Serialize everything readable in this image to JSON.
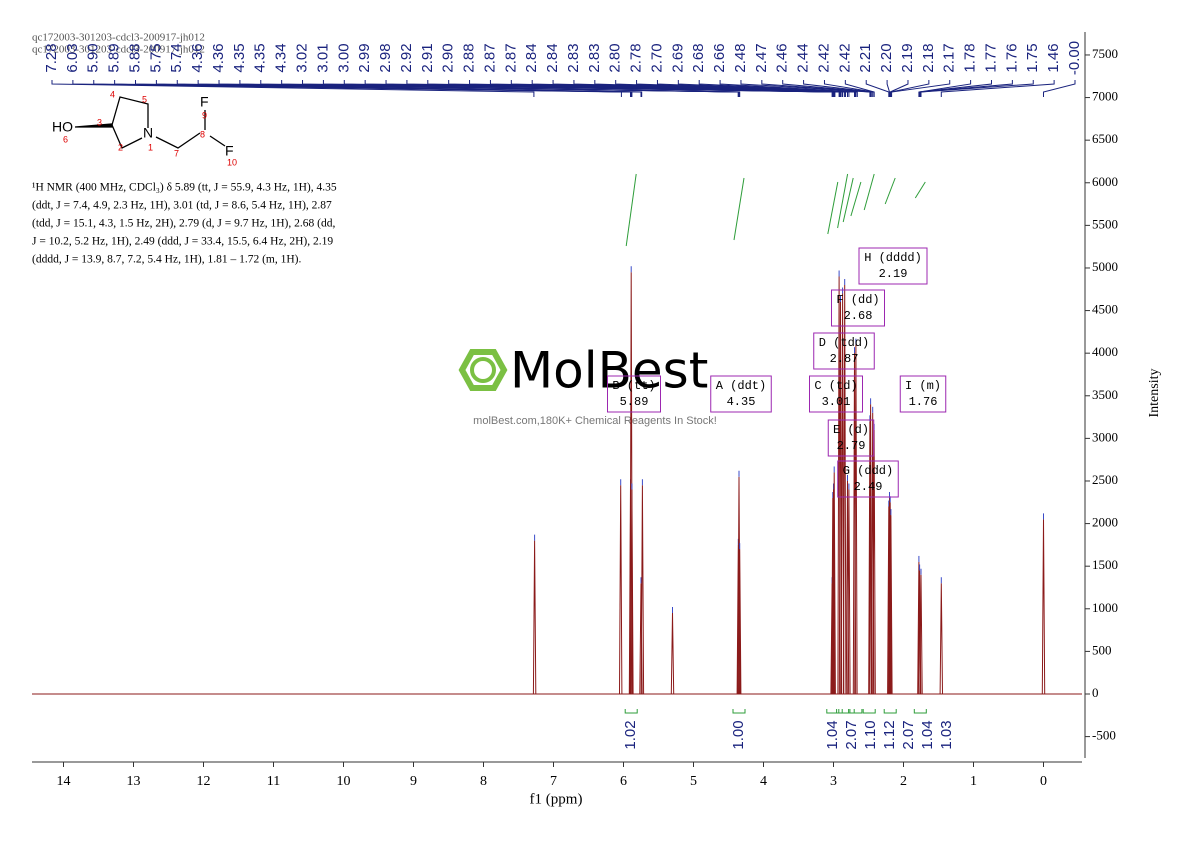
{
  "header": {
    "file_lines": [
      "qc172003-301203-cdcl3-200917-jh012",
      "qc172003-301203-cdcl3-200917-jh012"
    ]
  },
  "molecule": {
    "labels": [
      "HO",
      "3",
      "6",
      "4",
      "5",
      "N",
      "1",
      "2",
      "7",
      "8",
      "F",
      "9",
      "F",
      "10"
    ]
  },
  "description": [
    "¹H NMR (400 MHz, CDCl₃) δ 5.89 (tt, J = 55.9, 4.3 Hz, 1H), 4.35",
    "(ddt, J = 7.4, 4.9, 2.3 Hz, 1H), 3.01 (td, J = 8.6, 5.4 Hz, 1H), 2.87",
    "(tdd, J = 15.1, 4.3, 1.5 Hz, 2H), 2.79 (d, J = 9.7 Hz, 1H), 2.68 (dd,",
    "J = 10.2, 5.2 Hz, 1H), 2.49 (ddd, J = 33.4, 15.5, 6.4 Hz, 2H), 2.19",
    "(dddd, J = 13.9, 8.7, 7.2, 5.4 Hz, 1H), 1.81 – 1.72 (m, 1H)."
  ],
  "watermark": {
    "brand": "MolBest",
    "tagline": "molBest.com,180K+ Chemical Reagents In Stock!"
  },
  "chart_data": {
    "type": "spectrum",
    "xlabel": "f1 (ppm)",
    "ylabel": "Intensity",
    "color": "#8b1a1a",
    "xlim": [
      14.45,
      -0.55
    ],
    "xticks": [
      14,
      13,
      12,
      11,
      10,
      9,
      8,
      7,
      6,
      5,
      4,
      3,
      2,
      1,
      0
    ],
    "ylim": [
      -750,
      7800
    ],
    "yticks": [
      -500,
      0,
      500,
      1000,
      1500,
      2000,
      2500,
      3000,
      3500,
      4000,
      4500,
      5000,
      5500,
      6000,
      6500,
      7000,
      7500
    ],
    "x": [
      7.27,
      6.04,
      5.9,
      5.89,
      5.88,
      5.75,
      5.73,
      5.3,
      4.36,
      4.35,
      4.34,
      3.02,
      3.01,
      3.0,
      2.99,
      2.92,
      2.9,
      2.87,
      2.84,
      2.8,
      2.78,
      2.7,
      2.68,
      2.48,
      2.47,
      2.44,
      2.42,
      2.21,
      2.2,
      2.19,
      2.18,
      1.78,
      1.77,
      1.75,
      1.46,
      0.0
    ],
    "values": [
      1800,
      2450,
      2450,
      4950,
      2400,
      1300,
      2450,
      950,
      1750,
      2550,
      1700,
      1300,
      2300,
      2400,
      2600,
      4900,
      4600,
      4700,
      4800,
      2500,
      2400,
      4000,
      4100,
      3200,
      3400,
      3300,
      3100,
      2200,
      2300,
      2250,
      2100,
      1550,
      1450,
      1400,
      1300,
      2050
    ],
    "peak_labels": [
      "7.28",
      "6.03",
      "5.90",
      "5.89",
      "5.88",
      "5.75",
      "5.74",
      "4.36",
      "4.36",
      "4.35",
      "4.35",
      "4.34",
      "3.02",
      "3.01",
      "3.00",
      "2.99",
      "2.98",
      "2.92",
      "2.91",
      "2.90",
      "2.88",
      "2.87",
      "2.87",
      "2.84",
      "2.84",
      "2.83",
      "2.83",
      "2.80",
      "2.78",
      "2.70",
      "2.69",
      "2.68",
      "2.66",
      "2.48",
      "2.47",
      "2.46",
      "2.44",
      "2.42",
      "2.42",
      "2.21",
      "2.20",
      "2.19",
      "2.18",
      "2.17",
      "1.78",
      "1.77",
      "1.76",
      "1.75",
      "1.46",
      "-0.00"
    ],
    "multiplets": [
      {
        "name": "B (tt)",
        "shift": "5.89"
      },
      {
        "name": "A (ddt)",
        "shift": "4.35"
      },
      {
        "name": "C (td)",
        "shift": "3.01"
      },
      {
        "name": "D (tdd)",
        "shift": "2.87"
      },
      {
        "name": "E (d)",
        "shift": "2.79"
      },
      {
        "name": "F (dd)",
        "shift": "2.68"
      },
      {
        "name": "G (ddd)",
        "shift": "2.49"
      },
      {
        "name": "H (dddd)",
        "shift": "2.19"
      },
      {
        "name": "I (m)",
        "shift": "1.76"
      }
    ],
    "integrals": {
      "values": [
        1.02,
        1,
        1.04,
        2.07,
        1.1,
        1.12,
        2.07,
        1.04,
        1.03
      ],
      "value_labels": [
        "1.02",
        "1.00",
        "1.04",
        "2.07",
        "1.10",
        "1.12",
        "2.07",
        "1.04",
        "1.03"
      ]
    }
  }
}
